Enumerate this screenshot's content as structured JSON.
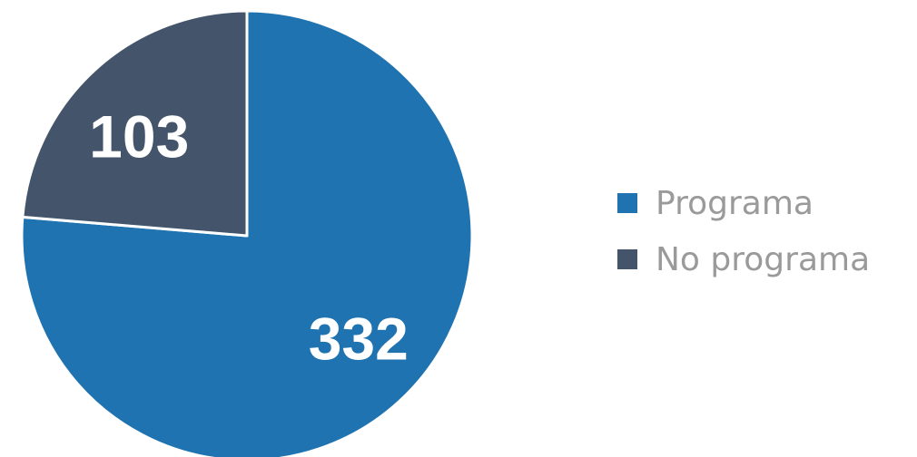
{
  "chart_data": {
    "type": "pie",
    "categories": [
      "Programa",
      "No programa"
    ],
    "values": [
      332,
      103
    ],
    "colors": [
      "#1f73b0",
      "#44546a"
    ],
    "start_angle_deg": 0,
    "direction": "clockwise",
    "data_labels": [
      "332",
      "103"
    ],
    "legend": {
      "position": "right",
      "entries": [
        "Programa",
        "No programa"
      ]
    },
    "title": ""
  }
}
